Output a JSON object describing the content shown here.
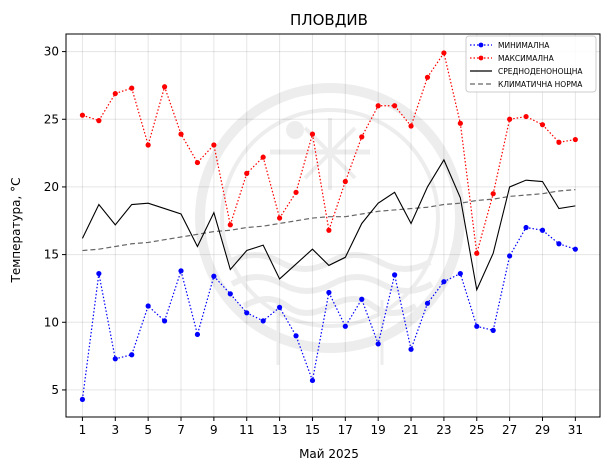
{
  "chart_data": {
    "type": "line",
    "title": "ПЛОВДИВ",
    "xlabel": "Май  2025",
    "ylabel": "Температура,  °C",
    "x": [
      1,
      2,
      3,
      4,
      5,
      6,
      7,
      8,
      9,
      10,
      11,
      12,
      13,
      14,
      15,
      16,
      17,
      18,
      19,
      20,
      21,
      22,
      23,
      24,
      25,
      26,
      27,
      28,
      29,
      30,
      31
    ],
    "xticks": [
      "1",
      "3",
      "5",
      "7",
      "9",
      "11",
      "13",
      "15",
      "17",
      "19",
      "21",
      "23",
      "25",
      "27",
      "29",
      "31"
    ],
    "xlim": [
      0.0,
      32.5
    ],
    "ylim": [
      3.0,
      31.3
    ],
    "yticks": [
      "5",
      "10",
      "15",
      "20",
      "25",
      "30"
    ],
    "grid": true,
    "legend_position": "top-right",
    "series": [
      {
        "name": "МИНИМАЛНА",
        "color": "#0000ff",
        "style": "dotted-marker",
        "values": [
          4.3,
          13.6,
          7.3,
          7.6,
          11.2,
          10.1,
          13.8,
          9.1,
          13.4,
          12.1,
          10.7,
          10.1,
          11.1,
          9.0,
          5.7,
          12.2,
          9.7,
          11.7,
          8.4,
          13.5,
          8.0,
          11.4,
          13.0,
          13.6,
          9.7,
          9.4,
          14.9,
          17.0,
          16.8,
          15.8,
          15.4
        ]
      },
      {
        "name": "МАКСИМАЛНА",
        "color": "#ff0000",
        "style": "dotted-marker",
        "values": [
          25.3,
          24.9,
          26.9,
          27.3,
          23.1,
          27.4,
          23.9,
          21.8,
          23.1,
          17.2,
          21.0,
          22.2,
          17.7,
          19.6,
          23.9,
          16.8,
          20.4,
          23.7,
          26.0,
          26.0,
          24.5,
          28.1,
          29.9,
          24.7,
          15.1,
          19.5,
          25.0,
          25.2,
          24.6,
          23.3,
          23.5
        ]
      },
      {
        "name": "СРЕДНОДЕНОНОЩНА",
        "color": "#000000",
        "style": "solid",
        "values": [
          16.2,
          18.7,
          17.2,
          18.7,
          18.8,
          18.4,
          18.0,
          15.6,
          18.1,
          13.9,
          15.3,
          15.7,
          13.2,
          14.3,
          15.4,
          14.2,
          14.8,
          17.3,
          18.8,
          19.6,
          17.3,
          20.0,
          22.0,
          19.2,
          12.4,
          15.1,
          20.0,
          20.5,
          20.4,
          18.4,
          18.6
        ]
      },
      {
        "name": "КЛИМАТИЧНА НОРМА",
        "color": "#666666",
        "style": "dashed",
        "values": [
          15.3,
          15.4,
          15.6,
          15.8,
          15.9,
          16.1,
          16.3,
          16.5,
          16.7,
          16.8,
          17.0,
          17.1,
          17.3,
          17.5,
          17.7,
          17.8,
          17.8,
          18.0,
          18.2,
          18.3,
          18.4,
          18.5,
          18.7,
          18.8,
          19.0,
          19.1,
          19.3,
          19.4,
          19.5,
          19.7,
          19.8
        ]
      }
    ]
  }
}
